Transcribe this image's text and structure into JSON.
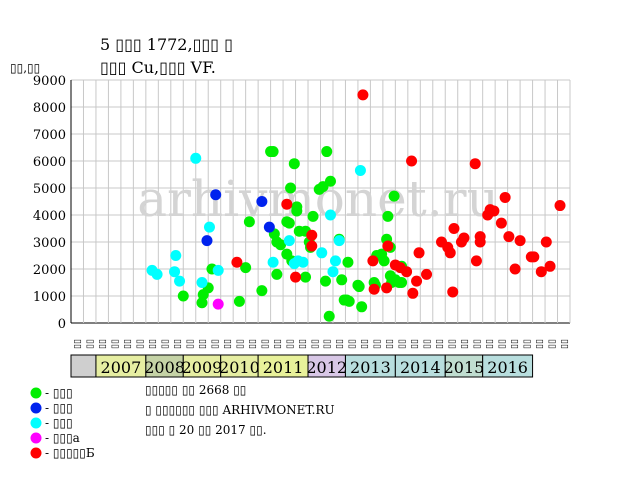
{
  "chart_data": {
    "type": "scatter",
    "title": "5 ▯▯▯ 1772,▯▯▯ ▯",
    "subtitle": "▯▯▯ Cu,▯▯▯ VF.",
    "ylabel": "▯▯,▯▯",
    "watermark": "arhivmonet.ru",
    "ylim": [
      0,
      9000
    ],
    "yticks": [
      0,
      1000,
      2000,
      3000,
      4000,
      5000,
      6000,
      7000,
      8000,
      9000
    ],
    "grid": true,
    "x_slot_labels": [
      "▯▯",
      "▯▯",
      "▯▯",
      "▯▯",
      "▯▯",
      "▯▯",
      "▯▯",
      "▯▯",
      "▯▯",
      "▯▯",
      "▯▯",
      "▯▯",
      "▯▯",
      "▯▯",
      "▯▯",
      "▯▯",
      "▯▯",
      "▯▯",
      "▯▯",
      "▯▯",
      "▯▯",
      "▯▯",
      "▯▯",
      "▯▯",
      "▯▯",
      "▯▯",
      "▯▯",
      "▯▯",
      "▯▯",
      "▯▯",
      "▯▯",
      "▯▯",
      "▯▯",
      "▯▯",
      "▯▯",
      "▯▯",
      "▯▯",
      "▯▯",
      "▯▯",
      "▯▯"
    ],
    "years": [
      {
        "label": "2007",
        "first_slot": 2,
        "slots": 4,
        "color": "#e6eea2"
      },
      {
        "label": "2008",
        "first_slot": 6,
        "slots": 3,
        "color": "#c5d3a6"
      },
      {
        "label": "2009",
        "first_slot": 9,
        "slots": 3,
        "color": "#e6eea2"
      },
      {
        "label": "2010",
        "first_slot": 12,
        "slots": 3,
        "color": "#e6eea2"
      },
      {
        "label": "2011",
        "first_slot": 15,
        "slots": 4,
        "color": "#e8f19a"
      },
      {
        "label": "2012",
        "first_slot": 19,
        "slots": 3,
        "color": "#d8c7e6"
      },
      {
        "label": "2013",
        "first_slot": 22,
        "slots": 4,
        "color": "#b8dede"
      },
      {
        "label": "2014",
        "first_slot": 26,
        "slots": 4,
        "color": "#b8dede"
      },
      {
        "label": "2015",
        "first_slot": 30,
        "slots": 3,
        "color": "#c0ddd0"
      },
      {
        "label": "2016",
        "first_slot": 33,
        "slots": 4,
        "color": "#b8dede"
      }
    ],
    "series": [
      {
        "name": "- ▯▯▯",
        "color": "#00ee00",
        "points": [
          [
            9.0,
            1000
          ],
          [
            10.5,
            750
          ],
          [
            10.6,
            1050
          ],
          [
            11.0,
            1300
          ],
          [
            11.3,
            2000
          ],
          [
            13.5,
            800
          ],
          [
            14.3,
            3750
          ],
          [
            14.0,
            2050
          ],
          [
            15.3,
            1200
          ],
          [
            16.0,
            6350
          ],
          [
            16.2,
            6350
          ],
          [
            16.3,
            3300
          ],
          [
            16.5,
            3000
          ],
          [
            16.5,
            1800
          ],
          [
            16.8,
            2900
          ],
          [
            17.3,
            2550
          ],
          [
            17.3,
            3750
          ],
          [
            17.5,
            3700
          ],
          [
            17.6,
            5000
          ],
          [
            17.7,
            2300
          ],
          [
            17.9,
            5900
          ],
          [
            18.1,
            4150
          ],
          [
            18.1,
            4300
          ],
          [
            18.3,
            3400
          ],
          [
            18.8,
            1700
          ],
          [
            18.8,
            3400
          ],
          [
            19.1,
            3000
          ],
          [
            19.2,
            2800
          ],
          [
            19.4,
            3950
          ],
          [
            19.9,
            4950
          ],
          [
            20.2,
            5050
          ],
          [
            20.4,
            1550
          ],
          [
            20.5,
            6350
          ],
          [
            20.7,
            250
          ],
          [
            20.8,
            5250
          ],
          [
            21.5,
            3100
          ],
          [
            21.7,
            1600
          ],
          [
            21.9,
            850
          ],
          [
            22.2,
            2250
          ],
          [
            22.1,
            850
          ],
          [
            22.3,
            800
          ],
          [
            23.0,
            1400
          ],
          [
            23.1,
            1350
          ],
          [
            23.3,
            600
          ],
          [
            24.3,
            1500
          ],
          [
            24.4,
            1400
          ],
          [
            24.5,
            2500
          ],
          [
            24.9,
            2550
          ],
          [
            25.1,
            2300
          ],
          [
            25.3,
            3100
          ],
          [
            25.4,
            3950
          ],
          [
            25.6,
            2800
          ],
          [
            25.9,
            4700
          ],
          [
            25.6,
            1750
          ],
          [
            25.7,
            1500
          ],
          [
            26.0,
            1600
          ],
          [
            26.3,
            1500
          ],
          [
            26.5,
            2100
          ],
          [
            26.5,
            1500
          ]
        ]
      },
      {
        "name": "- ▯▯▯",
        "color": "#0022ee",
        "points": [
          [
            10.9,
            3050
          ],
          [
            11.6,
            4750
          ],
          [
            15.3,
            4500
          ],
          [
            15.9,
            3550
          ]
        ]
      },
      {
        "name": "- ▯▯▯",
        "color": "#00ffff",
        "points": [
          [
            6.5,
            1950
          ],
          [
            6.9,
            1800
          ],
          [
            8.3,
            1900
          ],
          [
            8.4,
            2500
          ],
          [
            8.7,
            1550
          ],
          [
            10.0,
            6100
          ],
          [
            10.5,
            1500
          ],
          [
            11.1,
            3550
          ],
          [
            11.8,
            1950
          ],
          [
            16.2,
            2250
          ],
          [
            17.5,
            3050
          ],
          [
            17.9,
            2200
          ],
          [
            18.2,
            2300
          ],
          [
            18.6,
            2250
          ],
          [
            20.1,
            2600
          ],
          [
            20.8,
            4000
          ],
          [
            21.0,
            1900
          ],
          [
            21.2,
            2300
          ],
          [
            21.5,
            3050
          ],
          [
            23.2,
            5650
          ]
        ]
      },
      {
        "name": "- ▯▯▯а",
        "color": "#ff00ff",
        "points": [
          [
            11.8,
            700
          ]
        ]
      },
      {
        "name": "- ▯▯▯▯▯Б",
        "color": "#ff0000",
        "points": [
          [
            13.3,
            2250
          ],
          [
            17.3,
            4400
          ],
          [
            18.0,
            1700
          ],
          [
            19.3,
            2850
          ],
          [
            19.3,
            3250
          ],
          [
            23.4,
            8450
          ],
          [
            24.2,
            2300
          ],
          [
            24.3,
            1250
          ],
          [
            25.3,
            1300
          ],
          [
            25.4,
            2850
          ],
          [
            26.0,
            2150
          ],
          [
            26.4,
            2050
          ],
          [
            26.9,
            1900
          ],
          [
            27.3,
            6000
          ],
          [
            27.4,
            1100
          ],
          [
            27.7,
            1550
          ],
          [
            27.9,
            2600
          ],
          [
            28.5,
            1800
          ],
          [
            29.7,
            3000
          ],
          [
            30.2,
            2800
          ],
          [
            30.4,
            2600
          ],
          [
            30.6,
            1150
          ],
          [
            30.7,
            3500
          ],
          [
            31.3,
            3000
          ],
          [
            31.5,
            3150
          ],
          [
            32.4,
            5900
          ],
          [
            32.5,
            2300
          ],
          [
            32.8,
            3200
          ],
          [
            32.8,
            3000
          ],
          [
            33.4,
            4000
          ],
          [
            33.6,
            4200
          ],
          [
            33.9,
            4150
          ],
          [
            34.5,
            3700
          ],
          [
            34.8,
            4650
          ],
          [
            35.1,
            3200
          ],
          [
            35.6,
            2000
          ],
          [
            36.0,
            3050
          ],
          [
            36.9,
            2450
          ],
          [
            37.1,
            2450
          ],
          [
            37.7,
            1900
          ],
          [
            38.1,
            3000
          ],
          [
            38.4,
            2100
          ],
          [
            39.2,
            4350
          ]
        ]
      }
    ],
    "notes": [
      "▯▯▯▯▯ ▯▯ 2668 ▯▯",
      "▯ ▯▯▯▯▯▯ ▯▯▯ ARHIVMONET.RU",
      "▯▯▯ ▯ 20 ▯▯ 2017 ▯▯."
    ]
  }
}
